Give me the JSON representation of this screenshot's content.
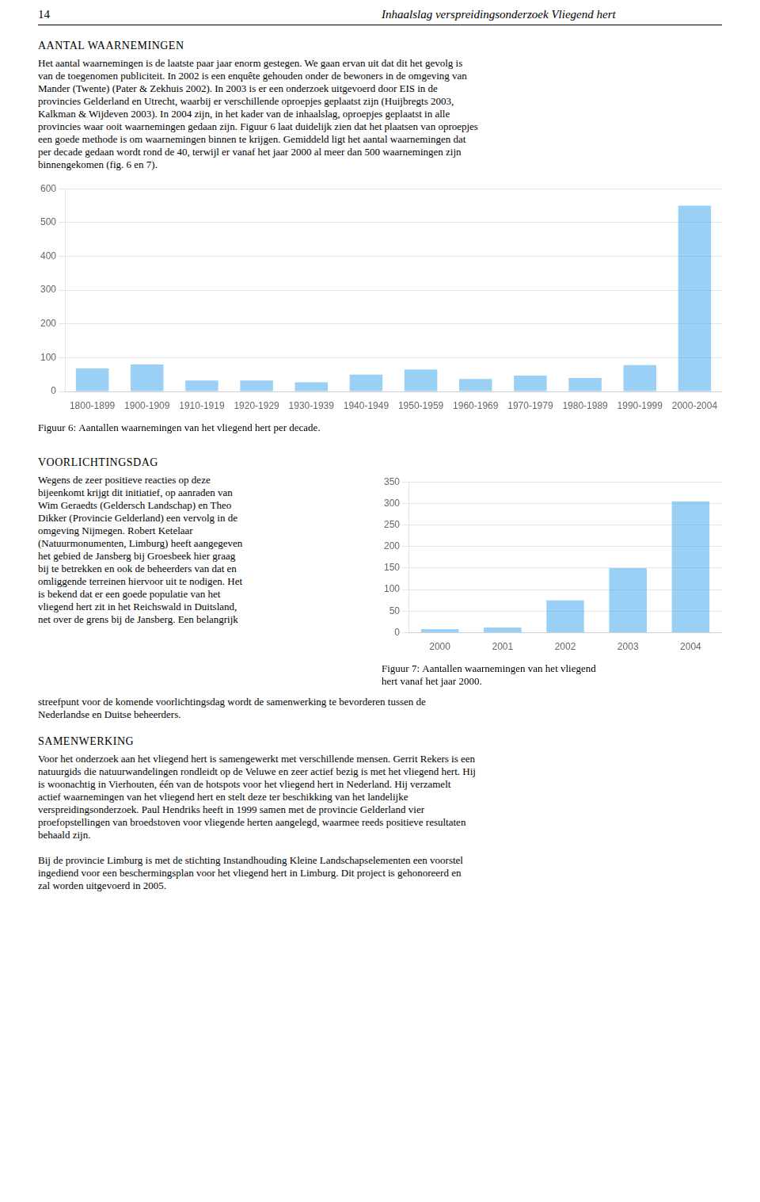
{
  "page": {
    "page_number": "14",
    "header": "Inhaalslag verspreidingsonderzoek Vliegend hert",
    "section1_title": "AANTAL WAARNEMINGEN",
    "section1_lines": [
      "Het aantal waarnemingen is de laatste paar jaar enorm gestegen. We gaan ervan uit dat dit het  gevolg is",
      "van de toegenomen publiciteit. In 2002 is een enquête gehouden onder de bewoners in de omgeving van",
      "Mander (Twente) (Pater & Zekhuis 2002). In 2003 is er een onderzoek uitgevoerd door EIS in de",
      "provincies Gelderland en Utrecht, waarbij er verschillende oproepjes geplaatst zijn (Huijbregts 2003,",
      "Kalkman & Wijdeven 2003). In 2004 zijn, in het kader van de inhaalslag, oproepjes geplaatst in alle",
      "provincies waar ooit waarnemingen gedaan zijn. Figuur 6 laat duidelijk zien dat het plaatsen van oproepjes",
      "een goede methode is om waarnemingen binnen te krijgen. Gemiddeld ligt het aantal waarnemingen dat",
      "per decade gedaan wordt rond de 40, terwijl er vanaf het jaar 2000 al meer dan 500 waarnemingen zijn",
      "binnengekomen (fig. 6 en 7)."
    ],
    "section2_title": "VOORLICHTINGSDAG",
    "section2_left_lines": [
      "Wegens de zeer positieve reacties op deze",
      "bijeenkomt krijgt dit initiatief, op aanraden van",
      "Wim Geraedts (Geldersch Landschap) en Theo",
      "Dikker (Provincie Gelderland) een vervolg in de",
      "omgeving Nijmegen. Robert Ketelaar",
      "(Natuurmonumenten, Limburg) heeft aangegeven",
      "het gebied de Jansberg bij Groesbeek hier graag",
      "bij te betrekken en ook de beheerders van dat en",
      "omliggende terreinen hiervoor uit te nodigen. Het",
      "is bekend dat er een goede populatie van het",
      "vliegend hert zit in het Reichswald in Duitsland,",
      "net over de grens bij de Jansberg. Een belangrijk"
    ],
    "section2_full_lines": [
      "streefpunt voor de komende voorlichtingsdag wordt de samenwerking te bevorderen tussen de",
      "Nederlandse en Duitse beheerders."
    ],
    "section3_title": "SAMENWERKING",
    "section3_paragraphs": [
      [
        "Voor het onderzoek aan het vliegend hert is samengewerkt met verschillende mensen. Gerrit Rekers is een",
        "natuurgids die natuurwandelingen rondleidt op de Veluwe en zeer actief bezig is met het vliegend hert. Hij",
        "is woonachtig in Vierhouten, één van de hotspots voor het vliegend hert in Nederland. Hij verzamelt",
        "actief waarnemingen van het vliegend hert en stelt deze ter beschikking van het landelijke",
        "verspreidingsonderzoek. Paul Hendriks heeft in 1999 samen met de provincie Gelderland vier",
        "proefopstellingen van broedstoven voor vliegende herten aangelegd, waarmee reeds positieve resultaten",
        "behaald zijn."
      ],
      [
        "Bij de provincie Limburg is met de stichting Instandhouding Kleine Landschapselementen een voorstel",
        "ingediend voor een beschermingsplan voor het vliegend hert in Limburg. Dit project is gehonoreerd en",
        "zal worden uitgevoerd in 2005."
      ]
    ]
  },
  "chart_data": [
    {
      "type": "bar",
      "title": "Figuur 6: Aantallen waarnemingen van het vliegend hert per decade.",
      "categories": [
        "1800-1899",
        "1900-1909",
        "1910-1919",
        "1920-1929",
        "1930-1939",
        "1940-1949",
        "1950-1959",
        "1960-1969",
        "1970-1979",
        "1980-1989",
        "1990-1999",
        "2000-2004"
      ],
      "values": [
        68,
        80,
        32,
        32,
        27,
        50,
        65,
        37,
        47,
        40,
        78,
        550
      ],
      "ylim": [
        0,
        600
      ],
      "yticks": [
        0,
        100,
        200,
        300,
        400,
        500,
        600
      ],
      "grid": true
    },
    {
      "type": "bar",
      "title": [
        "Figuur 7: Aantallen waarnemingen van het vliegend",
        "hert vanaf het jaar 2000."
      ],
      "categories": [
        "2000",
        "2001",
        "2002",
        "2003",
        "2004"
      ],
      "values": [
        8,
        12,
        75,
        150,
        305
      ],
      "ylim": [
        0,
        350
      ],
      "yticks": [
        0,
        50,
        100,
        150,
        200,
        250,
        300,
        350
      ],
      "grid": true
    }
  ]
}
